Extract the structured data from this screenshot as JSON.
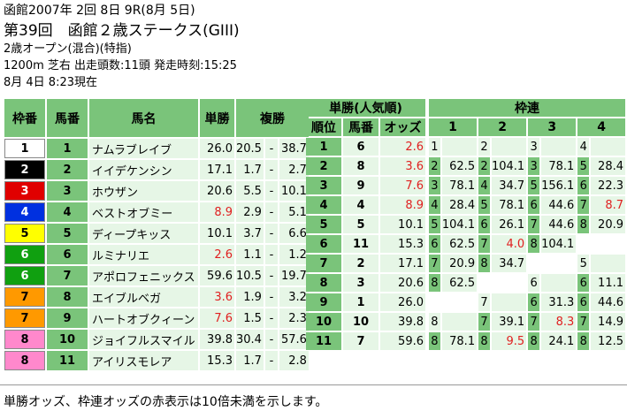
{
  "header": {
    "line1": "函館2007年 2回 8日 9R(8月 5日)",
    "line2": "第39回　函館２歳ステークス(GIII)",
    "line3": "2歳オープン(混合)(特指)",
    "line4": "1200m 芝右 出走頭数:11頭 発走時刻:15:25",
    "line5": "8月 4日 8:23現在"
  },
  "main_table": {
    "headers": [
      "枠番",
      "馬番",
      "馬名",
      "単勝",
      "複勝"
    ],
    "rows": [
      {
        "waku": "1",
        "uma": "1",
        "name": "ナムラブレイブ",
        "tan": "26.0",
        "tan_red": false,
        "fuku_min": "20.5",
        "sep": "-",
        "fuku_max": "38.7"
      },
      {
        "waku": "2",
        "uma": "2",
        "name": "イイデケンシン",
        "tan": "17.1",
        "tan_red": false,
        "fuku_min": "1.7",
        "sep": "-",
        "fuku_max": "2.7"
      },
      {
        "waku": "3",
        "uma": "3",
        "name": "ホウザン",
        "tan": "20.6",
        "tan_red": false,
        "fuku_min": "5.5",
        "sep": "-",
        "fuku_max": "10.1"
      },
      {
        "waku": "4",
        "uma": "4",
        "name": "ベストオブミー",
        "tan": "8.9",
        "tan_red": true,
        "fuku_min": "2.9",
        "sep": "-",
        "fuku_max": "5.1"
      },
      {
        "waku": "5",
        "uma": "5",
        "name": "ディープキッス",
        "tan": "10.1",
        "tan_red": false,
        "fuku_min": "3.7",
        "sep": "-",
        "fuku_max": "6.6"
      },
      {
        "waku": "6",
        "uma": "6",
        "name": "ルミナリエ",
        "tan": "2.6",
        "tan_red": true,
        "fuku_min": "1.1",
        "sep": "-",
        "fuku_max": "1.2"
      },
      {
        "waku": "6",
        "uma": "7",
        "name": "アポロフェニックス",
        "tan": "59.6",
        "tan_red": false,
        "fuku_min": "10.5",
        "sep": "-",
        "fuku_max": "19.7"
      },
      {
        "waku": "7",
        "uma": "8",
        "name": "エイブルベガ",
        "tan": "3.6",
        "tan_red": true,
        "fuku_min": "1.9",
        "sep": "-",
        "fuku_max": "3.2"
      },
      {
        "waku": "7",
        "uma": "9",
        "name": "ハートオブクィーン",
        "tan": "7.6",
        "tan_red": true,
        "fuku_min": "1.5",
        "sep": "-",
        "fuku_max": "2.3"
      },
      {
        "waku": "8",
        "uma": "10",
        "name": "ジョイフルスマイル",
        "tan": "39.8",
        "tan_red": false,
        "fuku_min": "30.4",
        "sep": "-",
        "fuku_max": "57.6"
      },
      {
        "waku": "8",
        "uma": "11",
        "name": "アイリスモレア",
        "tan": "15.3",
        "tan_red": false,
        "fuku_min": "1.7",
        "sep": "-",
        "fuku_max": "2.8"
      }
    ]
  },
  "waku_colors": {
    "1": {
      "bg": "#ffffff",
      "fg": "#000000"
    },
    "2": {
      "bg": "#000000",
      "fg": "#ffffff"
    },
    "3": {
      "bg": "#e00000",
      "fg": "#ffffff"
    },
    "4": {
      "bg": "#0030e0",
      "fg": "#ffffff"
    },
    "5": {
      "bg": "#ffff00",
      "fg": "#000000"
    },
    "6": {
      "bg": "#10a010",
      "fg": "#ffffff"
    },
    "7": {
      "bg": "#ff9900",
      "fg": "#000000"
    },
    "8": {
      "bg": "#ff88cc",
      "fg": "#000000"
    }
  },
  "tansho_ninki": {
    "title": "単勝(人気順)",
    "headers": [
      "順位",
      "馬番",
      "オッズ"
    ],
    "rows": [
      {
        "rank": "1",
        "uma": "6",
        "odds": "2.6",
        "red": true
      },
      {
        "rank": "2",
        "uma": "8",
        "odds": "3.6",
        "red": true
      },
      {
        "rank": "3",
        "uma": "9",
        "odds": "7.6",
        "red": true
      },
      {
        "rank": "4",
        "uma": "4",
        "odds": "8.9",
        "red": true
      },
      {
        "rank": "5",
        "uma": "5",
        "odds": "10.1",
        "red": false
      },
      {
        "rank": "6",
        "uma": "11",
        "odds": "15.3",
        "red": false
      },
      {
        "rank": "7",
        "uma": "2",
        "odds": "17.1",
        "red": false
      },
      {
        "rank": "8",
        "uma": "3",
        "odds": "20.6",
        "red": false
      },
      {
        "rank": "9",
        "uma": "1",
        "odds": "26.0",
        "red": false
      },
      {
        "rank": "10",
        "uma": "10",
        "odds": "39.8",
        "red": false
      },
      {
        "rank": "11",
        "uma": "7",
        "odds": "59.6",
        "red": false
      }
    ]
  },
  "wakuren": {
    "title": "枠連",
    "col_headers": [
      "1",
      "2",
      "3",
      "4"
    ],
    "rows": [
      [
        [
          "h",
          "1"
        ],
        [
          "e",
          ""
        ],
        [
          "h",
          "2"
        ],
        [
          "e",
          ""
        ],
        [
          "h",
          "3"
        ],
        [
          "e",
          ""
        ],
        [
          "h",
          "4"
        ],
        [
          "e",
          ""
        ]
      ],
      [
        [
          "k",
          "2"
        ],
        [
          "v",
          "62.5"
        ],
        [
          "k",
          "2"
        ],
        [
          "v",
          "104.1"
        ],
        [
          "k",
          "3"
        ],
        [
          "v",
          "78.1"
        ],
        [
          "k",
          "5"
        ],
        [
          "v",
          "28.4"
        ]
      ],
      [
        [
          "k",
          "3"
        ],
        [
          "v",
          "78.1"
        ],
        [
          "k",
          "4"
        ],
        [
          "v",
          "34.7"
        ],
        [
          "k",
          "5"
        ],
        [
          "v",
          "156.1"
        ],
        [
          "k",
          "6"
        ],
        [
          "v",
          "22.3"
        ]
      ],
      [
        [
          "k",
          "4"
        ],
        [
          "v",
          "28.4"
        ],
        [
          "k",
          "5"
        ],
        [
          "v",
          "78.1"
        ],
        [
          "k",
          "6"
        ],
        [
          "v",
          "44.6"
        ],
        [
          "k",
          "7"
        ],
        [
          "r",
          "8.7"
        ]
      ],
      [
        [
          "k",
          "5"
        ],
        [
          "v",
          "104.1"
        ],
        [
          "k",
          "6"
        ],
        [
          "v",
          "26.1"
        ],
        [
          "k",
          "7"
        ],
        [
          "v",
          "44.6"
        ],
        [
          "k",
          "8"
        ],
        [
          "v",
          "20.9"
        ]
      ],
      [
        [
          "k",
          "6"
        ],
        [
          "v",
          "62.5"
        ],
        [
          "k",
          "7"
        ],
        [
          "r",
          "4.0"
        ],
        [
          "k",
          "8"
        ],
        [
          "v",
          "104.1"
        ],
        [
          "w",
          ""
        ],
        [
          "w",
          ""
        ]
      ],
      [
        [
          "k",
          "7"
        ],
        [
          "v",
          "20.9"
        ],
        [
          "k",
          "8"
        ],
        [
          "v",
          "34.7"
        ],
        [
          "w",
          ""
        ],
        [
          "w",
          ""
        ],
        [
          "h",
          "5"
        ],
        [
          "e",
          ""
        ]
      ],
      [
        [
          "k",
          "8"
        ],
        [
          "v",
          "62.5"
        ],
        [
          "w",
          ""
        ],
        [
          "w",
          ""
        ],
        [
          "h",
          "6"
        ],
        [
          "e",
          ""
        ],
        [
          "k",
          "6"
        ],
        [
          "v",
          "11.1"
        ]
      ],
      [
        [
          "w",
          ""
        ],
        [
          "w",
          ""
        ],
        [
          "h",
          "7"
        ],
        [
          "e",
          ""
        ],
        [
          "k",
          "6"
        ],
        [
          "v",
          "31.3"
        ],
        [
          "k",
          "6"
        ],
        [
          "v",
          "44.6"
        ]
      ],
      [
        [
          "h",
          "8"
        ],
        [
          "e",
          ""
        ],
        [
          "k",
          "7"
        ],
        [
          "v",
          "39.1"
        ],
        [
          "k",
          "7"
        ],
        [
          "r",
          "8.3"
        ],
        [
          "k",
          "7"
        ],
        [
          "v",
          "14.9"
        ]
      ],
      [
        [
          "k",
          "8"
        ],
        [
          "v",
          "78.1"
        ],
        [
          "k",
          "8"
        ],
        [
          "r",
          "9.5"
        ],
        [
          "k",
          "8"
        ],
        [
          "v",
          "24.1"
        ],
        [
          "k",
          "8"
        ],
        [
          "v",
          "12.5"
        ]
      ]
    ]
  },
  "footer": "単勝オッズ、枠連オッズの赤表示は10倍未満を示します。"
}
